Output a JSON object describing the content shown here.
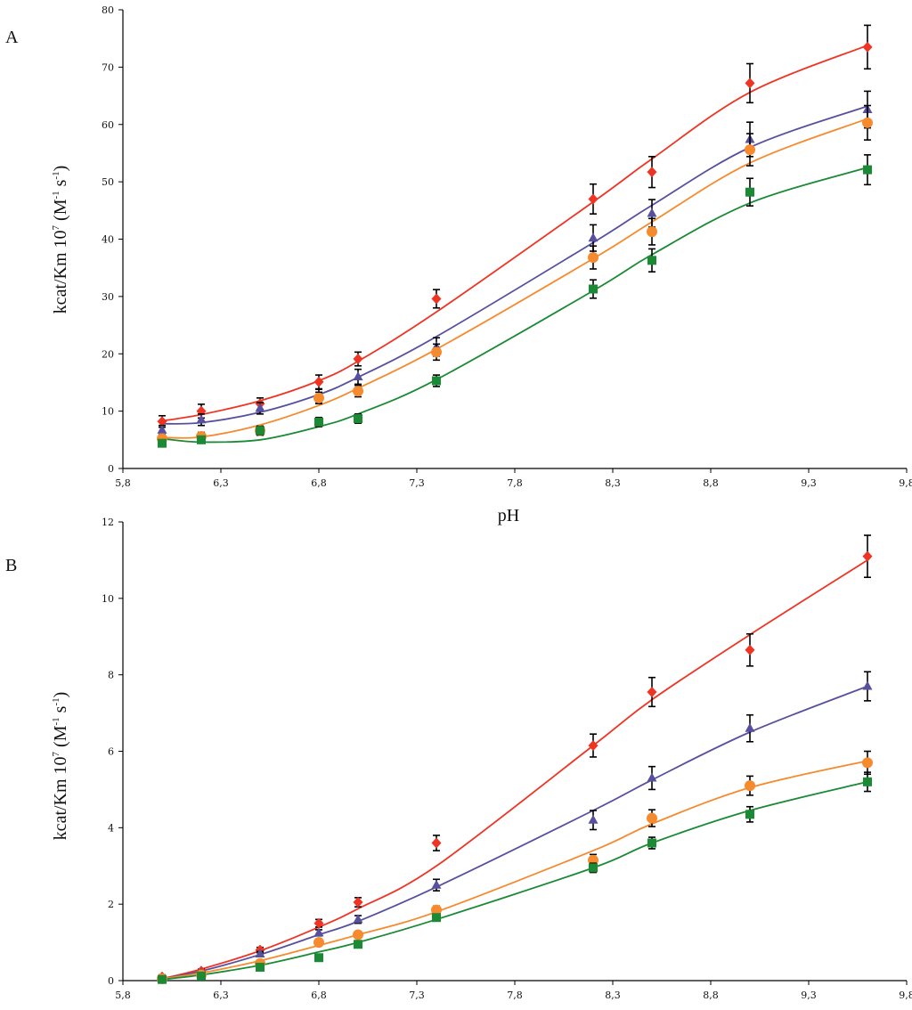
{
  "chart_data": [
    {
      "type": "scatter",
      "panel_label": "A",
      "xlabel": "pH",
      "ylabel": "kcat/Km 10",
      "ylabel_exp": "7",
      "ylabel_units_open": " (M",
      "ylabel_units_exp1": "-1",
      "ylabel_units_mid": " s",
      "ylabel_units_exp2": "-1",
      "ylabel_units_close": ")",
      "xlim": [
        5.8,
        9.8
      ],
      "ylim": [
        0,
        80
      ],
      "xticks": [
        5.8,
        6.3,
        6.8,
        7.3,
        7.8,
        8.3,
        8.8,
        9.3,
        9.8
      ],
      "xtick_labels": [
        "5,8",
        "6,3",
        "6,8",
        "7,3",
        "7,8",
        "8,3",
        "8,8",
        "9,3",
        "9,8"
      ],
      "yticks": [
        0,
        10,
        20,
        30,
        40,
        50,
        60,
        70,
        80
      ],
      "ytick_labels": [
        "0",
        "10",
        "20",
        "30",
        "40",
        "50",
        "60",
        "70",
        "80"
      ],
      "x": [
        6.0,
        6.2,
        6.5,
        6.8,
        7.0,
        7.4,
        8.2,
        8.5,
        9.0,
        9.6
      ],
      "series": [
        {
          "name": "red-diamond",
          "color": "#ee3524",
          "marker": "diamond",
          "values": [
            8.2,
            10.0,
            11.3,
            15.1,
            19.1,
            29.6,
            47.0,
            51.7,
            67.2,
            73.5
          ],
          "errors": [
            1.0,
            1.2,
            1.0,
            1.2,
            1.2,
            1.6,
            2.6,
            2.7,
            3.4,
            3.8
          ],
          "fit": [
            8.3,
            9.4,
            11.8,
            15.3,
            18.7,
            27.3,
            46.5,
            54.0,
            65.6,
            73.8
          ]
        },
        {
          "name": "purple-triangle",
          "color": "#57509e",
          "marker": "triangle",
          "values": [
            6.7,
            8.5,
            10.5,
            12.6,
            16.0,
            21.2,
            40.2,
            44.5,
            57.4,
            62.6
          ],
          "errors": [
            0.8,
            1.0,
            1.0,
            1.2,
            1.3,
            1.6,
            2.3,
            2.4,
            3.0,
            3.2
          ],
          "fit": [
            7.8,
            8.0,
            9.8,
            12.9,
            15.9,
            23.0,
            39.4,
            45.9,
            56.0,
            63.2
          ]
        },
        {
          "name": "orange-circle",
          "color": "#f58a2e",
          "marker": "circle",
          "values": [
            5.2,
            5.6,
            6.6,
            12.3,
            13.5,
            20.3,
            36.8,
            41.3,
            55.6,
            60.3
          ],
          "errors": [
            0.6,
            0.7,
            0.8,
            1.0,
            1.0,
            1.4,
            2.0,
            2.3,
            2.8,
            3.0
          ],
          "fit": [
            5.4,
            5.5,
            7.6,
            11.0,
            14.0,
            20.8,
            36.6,
            43.0,
            53.3,
            61.0
          ]
        },
        {
          "name": "green-square",
          "color": "#1a8a35",
          "marker": "square",
          "values": [
            4.4,
            5.0,
            6.6,
            8.1,
            8.7,
            15.3,
            31.3,
            36.3,
            48.2,
            52.1
          ],
          "errors": [
            0.5,
            0.6,
            0.7,
            0.8,
            0.8,
            1.0,
            1.6,
            2.0,
            2.4,
            2.6
          ],
          "fit": [
            5.2,
            4.6,
            5.0,
            7.3,
            9.5,
            15.5,
            31.0,
            37.3,
            46.3,
            52.5
          ]
        }
      ]
    },
    {
      "type": "scatter",
      "panel_label": "B",
      "xlabel": "",
      "ylabel": "kcat/Km 10",
      "ylabel_exp": "7",
      "ylabel_units_open": " (M",
      "ylabel_units_exp1": "-1",
      "ylabel_units_mid": " s",
      "ylabel_units_exp2": "-1",
      "ylabel_units_close": ")",
      "xlim": [
        5.8,
        9.8
      ],
      "ylim": [
        0,
        12
      ],
      "xticks": [
        5.8,
        6.3,
        6.8,
        7.3,
        7.8,
        8.3,
        8.8,
        9.3,
        9.8
      ],
      "xtick_labels": [
        "5,8",
        "6,3",
        "6,8",
        "7,3",
        "7,8",
        "8,3",
        "8,8",
        "9,3",
        "9,8"
      ],
      "yticks": [
        0,
        2,
        4,
        6,
        8,
        10,
        12
      ],
      "ytick_labels": [
        "0",
        "2",
        "4",
        "6",
        "8",
        "10",
        "12"
      ],
      "x": [
        6.0,
        6.2,
        6.5,
        6.8,
        7.0,
        7.4,
        8.2,
        8.5,
        9.0,
        9.6
      ],
      "series": [
        {
          "name": "red-diamond",
          "color": "#ee3524",
          "marker": "diamond",
          "values": [
            0.1,
            0.25,
            0.8,
            1.5,
            2.05,
            3.6,
            6.15,
            7.55,
            8.65,
            11.1
          ],
          "errors": [
            0.05,
            0.05,
            0.07,
            0.1,
            0.12,
            0.2,
            0.3,
            0.38,
            0.42,
            0.55
          ],
          "fit": [
            0.05,
            0.3,
            0.78,
            1.4,
            1.88,
            3.0,
            6.15,
            7.35,
            9.05,
            11.0
          ]
        },
        {
          "name": "purple-triangle",
          "color": "#57509e",
          "marker": "triangle",
          "values": [
            0.05,
            0.2,
            0.7,
            1.25,
            1.6,
            2.5,
            4.2,
            5.3,
            6.6,
            7.7
          ],
          "errors": [
            0.04,
            0.05,
            0.06,
            0.08,
            0.1,
            0.15,
            0.25,
            0.3,
            0.35,
            0.38
          ],
          "fit": [
            0.05,
            0.25,
            0.68,
            1.2,
            1.55,
            2.45,
            4.45,
            5.25,
            6.5,
            7.7
          ]
        },
        {
          "name": "orange-circle",
          "color": "#f58a2e",
          "marker": "circle",
          "values": [
            0.05,
            0.15,
            0.45,
            1.0,
            1.2,
            1.85,
            3.15,
            4.25,
            5.1,
            5.7
          ],
          "errors": [
            0.03,
            0.04,
            0.05,
            0.07,
            0.08,
            0.1,
            0.15,
            0.22,
            0.25,
            0.3
          ],
          "fit": [
            0.05,
            0.2,
            0.52,
            0.92,
            1.2,
            1.8,
            3.4,
            4.1,
            5.05,
            5.75
          ]
        },
        {
          "name": "green-square",
          "color": "#1a8a35",
          "marker": "square",
          "values": [
            0.03,
            0.12,
            0.35,
            0.6,
            0.95,
            1.65,
            2.95,
            3.6,
            4.35,
            5.2
          ],
          "errors": [
            0.03,
            0.03,
            0.04,
            0.05,
            0.06,
            0.08,
            0.12,
            0.15,
            0.2,
            0.25
          ],
          "fit": [
            0.03,
            0.15,
            0.4,
            0.75,
            1.0,
            1.6,
            2.95,
            3.6,
            4.45,
            5.2
          ]
        }
      ]
    }
  ]
}
